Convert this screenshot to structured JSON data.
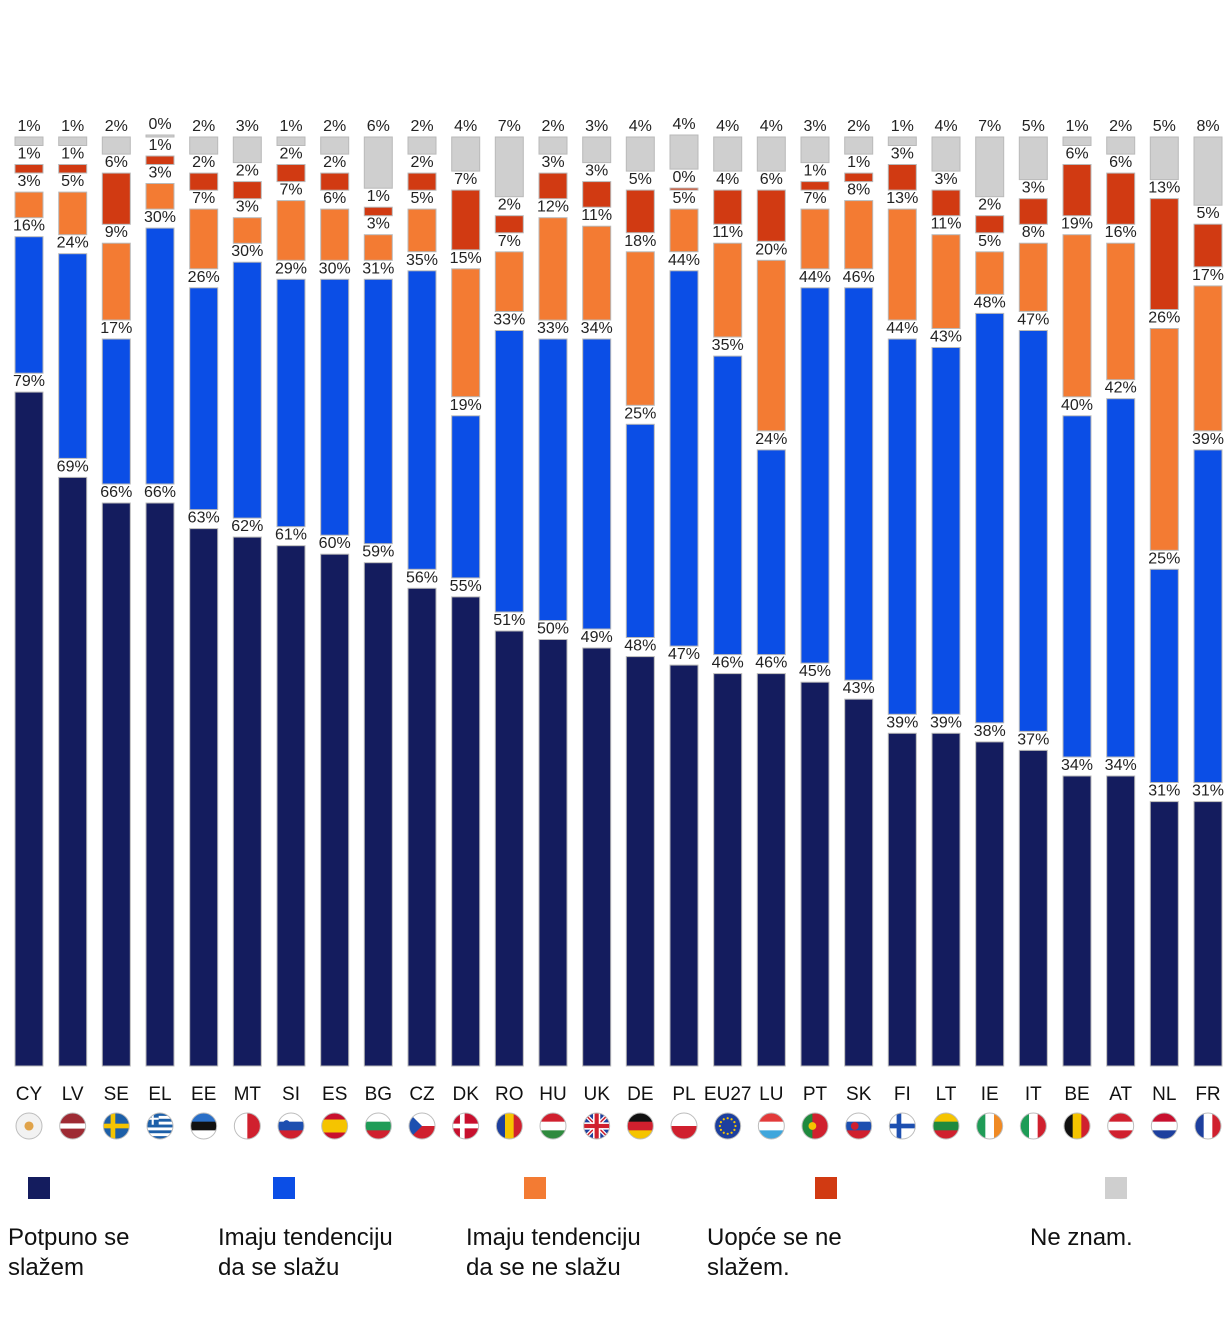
{
  "chart_data": {
    "type": "bar",
    "stacked": true,
    "categories": [
      "CY",
      "LV",
      "SE",
      "EL",
      "EE",
      "MT",
      "SI",
      "ES",
      "BG",
      "CZ",
      "DK",
      "RO",
      "HU",
      "UK",
      "DE",
      "PL",
      "EU27",
      "LU",
      "PT",
      "SK",
      "FI",
      "LT",
      "IE",
      "IT",
      "BE",
      "AT",
      "NL",
      "FR"
    ],
    "series": [
      {
        "name": "Potpuno se slažem",
        "color": "#141c5e",
        "labels": [
          "79%",
          "69%",
          "66%",
          "66%",
          "63%",
          "62%",
          "61%",
          "60%",
          "59%",
          "56%",
          "55%",
          "51%",
          "50%",
          "49%",
          "48%",
          "47%",
          "46%",
          "46%",
          "45%",
          "43%",
          "39%",
          "39%",
          "38%",
          "37%",
          "34%",
          "34%",
          "31%",
          "31%"
        ],
        "values": [
          79,
          69,
          66,
          66,
          63,
          62,
          61,
          60,
          59,
          56,
          55,
          51,
          50,
          49,
          48,
          47,
          46,
          46,
          45,
          43,
          39,
          39,
          38,
          37,
          34,
          34,
          31,
          31
        ]
      },
      {
        "name": "Imaju tendenciju da se slažu",
        "color": "#0b4ee6",
        "labels": [
          "16%",
          "24%",
          "17%",
          "30%",
          "26%",
          "30%",
          "29%",
          "30%",
          "31%",
          "35%",
          "19%",
          "33%",
          "33%",
          "34%",
          "25%",
          "44%",
          "35%",
          "24%",
          "44%",
          "46%",
          "44%",
          "43%",
          "48%",
          "47%",
          "40%",
          "42%",
          "25%",
          "39%"
        ],
        "values": [
          16,
          24,
          17,
          30,
          26,
          30,
          29,
          30,
          31,
          35,
          19,
          33,
          33,
          34,
          25,
          44,
          35,
          24,
          44,
          46,
          44,
          43,
          48,
          47,
          40,
          42,
          25,
          39
        ]
      },
      {
        "name": "Imaju tendenciju da se ne slažu",
        "color": "#f37b33",
        "labels": [
          "3%",
          "5%",
          "9%",
          "3%",
          "7%",
          "3%",
          "7%",
          "6%",
          "3%",
          "5%",
          "15%",
          "7%",
          "12%",
          "11%",
          "18%",
          "5%",
          "11%",
          "20%",
          "7%",
          "8%",
          "13%",
          "11%",
          "5%",
          "8%",
          "19%",
          "16%",
          "26%",
          "17%"
        ],
        "values": [
          3,
          5,
          9,
          3,
          7,
          3,
          7,
          6,
          3,
          5,
          15,
          7,
          12,
          11,
          18,
          5,
          11,
          20,
          7,
          8,
          13,
          11,
          5,
          8,
          19,
          16,
          26,
          17
        ]
      },
      {
        "name": "Uopće se ne slažem.",
        "color": "#d13a12",
        "labels": [
          "1%",
          "1%",
          "6%",
          "1%",
          "2%",
          "2%",
          "2%",
          "2%",
          "1%",
          "2%",
          "7%",
          "2%",
          "3%",
          "3%",
          "5%",
          "0%",
          "4%",
          "6%",
          "1%",
          "1%",
          "3%",
          "3%",
          "2%",
          "3%",
          "6%",
          "6%",
          "13%",
          "5%"
        ],
        "values": [
          1,
          1,
          6,
          1,
          2,
          2,
          2,
          2,
          1,
          2,
          7,
          2,
          3,
          3,
          5,
          0,
          4,
          6,
          1,
          1,
          3,
          3,
          2,
          3,
          6,
          6,
          13,
          5
        ]
      },
      {
        "name": "Ne znam.",
        "color": "#cfcfcf",
        "labels": [
          "1%",
          "1%",
          "2%",
          "0%",
          "2%",
          "3%",
          "1%",
          "2%",
          "6%",
          "2%",
          "4%",
          "7%",
          "2%",
          "3%",
          "4%",
          "4%",
          "4%",
          "4%",
          "3%",
          "2%",
          "1%",
          "4%",
          "7%",
          "5%",
          "1%",
          "2%",
          "5%",
          "8%"
        ],
        "values": [
          1,
          1,
          2,
          0,
          2,
          3,
          1,
          2,
          6,
          2,
          4,
          7,
          2,
          3,
          4,
          4,
          4,
          4,
          3,
          2,
          1,
          4,
          7,
          5,
          1,
          2,
          5,
          8
        ]
      }
    ],
    "flags": [
      "CY",
      "LV",
      "SE",
      "EL",
      "EE",
      "MT",
      "SI",
      "ES",
      "BG",
      "CZ",
      "DK",
      "RO",
      "HU",
      "UK",
      "DE",
      "PL",
      "EU",
      "LU",
      "PT",
      "SK",
      "FI",
      "LT",
      "IE",
      "IT",
      "BE",
      "AT",
      "NL",
      "FR"
    ],
    "legend_position": "bottom",
    "grid": false
  },
  "legend": {
    "items": [
      {
        "label": "Potpuno se slažem",
        "color": "#141c5e"
      },
      {
        "label": "Imaju tendenciju da se slažu",
        "color": "#0b4ee6"
      },
      {
        "label": "Imaju tendenciju da se ne slažu",
        "color": "#f37b33"
      },
      {
        "label": "Uopće se ne slažem.",
        "color": "#d13a12"
      },
      {
        "label": "Ne znam.",
        "color": "#cfcfcf"
      }
    ]
  }
}
